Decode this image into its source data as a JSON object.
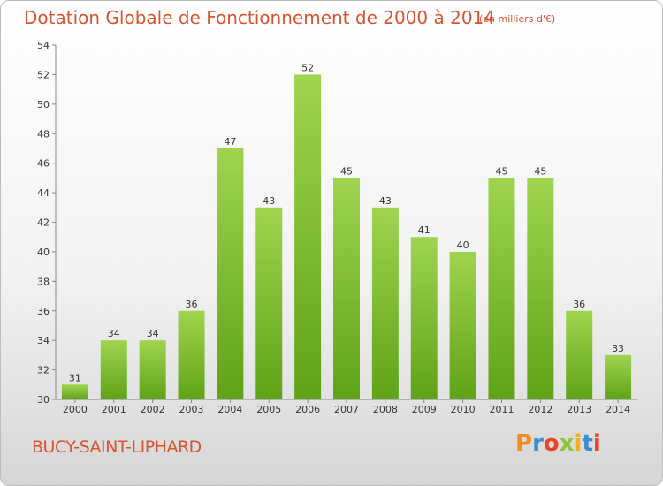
{
  "chart_data": {
    "type": "bar",
    "title": "Dotation Globale de Fonctionnement de 2000 à 2014",
    "subtitle": "(en milliers d'€)",
    "categories": [
      "2000",
      "2001",
      "2002",
      "2003",
      "2004",
      "2005",
      "2006",
      "2007",
      "2008",
      "2009",
      "2010",
      "2011",
      "2012",
      "2013",
      "2014"
    ],
    "values": [
      31,
      34,
      34,
      36,
      47,
      43,
      52,
      45,
      43,
      41,
      40,
      45,
      45,
      36,
      33
    ],
    "ylim": [
      30,
      54
    ],
    "yticks": [
      30,
      32,
      34,
      36,
      38,
      40,
      42,
      44,
      46,
      48,
      50,
      52,
      54
    ],
    "grid": false,
    "bar_color_top": "#9fd44f",
    "bar_color_bottom": "#5fa317"
  },
  "footer": {
    "place_name": "BUCY-SAINT-LIPHARD",
    "logo": [
      "P",
      "r",
      "o",
      "x",
      "i",
      "t",
      "i"
    ],
    "logo_colors": [
      "#f28c1e",
      "#3a8ed0",
      "#e8452c",
      "#8cc63f",
      "#f2b01e",
      "#3a8ed0",
      "#e8452c"
    ]
  },
  "colors": {
    "title": "#d8542f",
    "axis": "#888888"
  }
}
